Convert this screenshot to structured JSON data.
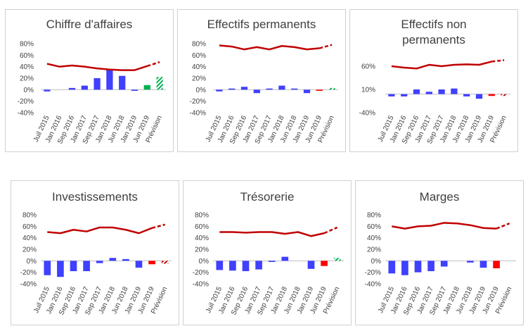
{
  "colors": {
    "line": "#c00000",
    "bar": "#4040ff",
    "bar_last_positive": "#00b050",
    "bar_last_negative": "#ff0000",
    "forecast_positive": "#00b050",
    "forecast_negative": "#c00000",
    "axis": "#bfbfbf",
    "text": "#404040"
  },
  "chart_data": [
    {
      "type": "bar",
      "title": "Chiffre d'affaires",
      "categories": [
        "Juil 2015",
        "Jan 2016",
        "Sep 2016",
        "Jan 2017",
        "Sep 2017",
        "Jan 2018",
        "Jun 2018",
        "Jan 2019",
        "Jun 2019",
        "Prévision"
      ],
      "x_tick_labels": [
        "Juil 2015",
        "Jan 2016",
        "Sep 2016",
        "Jan 2017",
        "Sep 2017",
        "Jan 2018",
        "Jun 2018",
        "Jan 2019",
        "Jun 2019",
        "Prévision"
      ],
      "y_ticks": [
        "80%",
        "60%",
        "40%",
        "20%",
        "0%",
        "-20%",
        "-40%"
      ],
      "ylim": [
        -40,
        80
      ],
      "series": [
        {
          "kind": "bar",
          "values": [
            -3,
            0,
            3,
            7,
            20,
            36,
            24,
            -2,
            8,
            22
          ]
        },
        {
          "kind": "line",
          "values": [
            45,
            40,
            42,
            40,
            37,
            35,
            34,
            34,
            41,
            48
          ]
        }
      ],
      "last_bar_color": "positive",
      "forecast_hatched": true
    },
    {
      "type": "bar",
      "title": "Effectifs permanents",
      "categories": [
        "Juil 2015",
        "Jan 2016",
        "Sep 2016",
        "Jan 2017",
        "Sep 2017",
        "Jan 2018",
        "Jun 2018",
        "Jan 2019",
        "Jun 2019",
        "Prévision"
      ],
      "x_tick_labels": [
        "Juil 2015",
        "Jan 2016",
        "Sep 2016",
        "Jan 2017",
        "Sep 2017",
        "Jan 2018",
        "Jun 2018",
        "Jan 2019",
        "Jun 2019",
        "Prévision"
      ],
      "y_ticks": [
        "80%",
        "60%",
        "40%",
        "20%",
        "0%",
        "-20%",
        "-40%"
      ],
      "ylim": [
        -40,
        80
      ],
      "series": [
        {
          "kind": "bar",
          "values": [
            -3,
            2,
            5,
            -6,
            2,
            7,
            2,
            -6,
            -2,
            3
          ]
        },
        {
          "kind": "line",
          "values": [
            77,
            75,
            70,
            74,
            70,
            76,
            74,
            70,
            72,
            78
          ]
        }
      ],
      "last_bar_color": "negative",
      "forecast_hatched": true
    },
    {
      "type": "bar",
      "title": "Effectifs non permanents",
      "categories": [
        "Juil 2015",
        "Jan 2016",
        "Sep 2016",
        "Jan 2017",
        "Sep 2017",
        "Jan 2018",
        "Jun 2018",
        "Jan 2019",
        "Jun 2019",
        "Prévision"
      ],
      "x_tick_labels": [
        "Juil 2015",
        "Jan 2016",
        "Sep 2016",
        "Jan 2017",
        "Sep 2017",
        "Jan 2018",
        "Jun 2018",
        "Jan 2019",
        "Jun 2019",
        "Prévision"
      ],
      "y_ticks": [
        "60%",
        "10%",
        "-40%"
      ],
      "ylim": [
        -40,
        60
      ],
      "series": [
        {
          "kind": "bar",
          "values": [
            -5,
            -5,
            10,
            5,
            10,
            12,
            -5,
            -10,
            -4,
            -4
          ]
        },
        {
          "kind": "line",
          "values": [
            60,
            57,
            55,
            63,
            60,
            63,
            64,
            63,
            70,
            73
          ]
        }
      ],
      "last_bar_color": "negative",
      "forecast_hatched": true
    },
    {
      "type": "bar",
      "title": "Investissements",
      "categories": [
        "Juil 2015",
        "Jan 2016",
        "Sep 2016",
        "Jan 2017",
        "Sep 2017",
        "Jan 2018",
        "Jun 2018",
        "Jan 2019",
        "Jun 2019",
        "Prévision"
      ],
      "x_tick_labels": [
        "Juil 2015",
        "Jan 2016",
        "Sep 2016",
        "Jan 2017",
        "Sep 2017",
        "Jan 2018",
        "Jun 2018",
        "Jan 2019",
        "Jun 2019",
        "Prévision"
      ],
      "y_ticks": [
        "80%",
        "60%",
        "40%",
        "20%",
        "0%",
        "-20%",
        "-40%"
      ],
      "ylim": [
        -40,
        80
      ],
      "series": [
        {
          "kind": "bar",
          "values": [
            -25,
            -28,
            -18,
            -18,
            -4,
            5,
            3,
            -12,
            -6,
            -5
          ]
        },
        {
          "kind": "line",
          "values": [
            50,
            48,
            54,
            51,
            58,
            58,
            54,
            48,
            57,
            63
          ]
        }
      ],
      "last_bar_color": "negative",
      "forecast_hatched": true
    },
    {
      "type": "bar",
      "title": "Trésorerie",
      "categories": [
        "Juil 2015",
        "Jan 2016",
        "Sep 2016",
        "Jan 2017",
        "Sep 2017",
        "Jan 2018",
        "Jun 2018",
        "Jan 2019",
        "Jun 2019",
        "Prévision"
      ],
      "x_tick_labels": [
        "Juil 2015",
        "Jan 2016",
        "Sep 2016",
        "Jan 2017",
        "Sep 2017",
        "Jan 2018",
        "Jun 2018",
        "Jan 2019",
        "Jun 2019",
        "Prévision"
      ],
      "y_ticks": [
        "80%",
        "60%",
        "40%",
        "20%",
        "0%",
        "-20%",
        "-40%"
      ],
      "ylim": [
        -40,
        80
      ],
      "series": [
        {
          "kind": "bar",
          "values": [
            -16,
            -17,
            -18,
            -15,
            -2,
            7,
            0,
            -14,
            -9,
            5
          ]
        },
        {
          "kind": "line",
          "values": [
            50,
            50,
            49,
            50,
            50,
            47,
            50,
            43,
            48,
            58
          ]
        }
      ],
      "last_bar_color": "negative",
      "forecast_hatched": true
    },
    {
      "type": "bar",
      "title": "Marges",
      "categories": [
        "Juil 2015",
        "Jan 2016",
        "Sep 2016",
        "Jan 2017",
        "Sep 2017",
        "Jan 2018",
        "Jun 2018",
        "Jan 2019",
        "Jun 2019",
        "Prévision"
      ],
      "x_tick_labels": [
        "Juil 2015",
        "Jan 2016",
        "Sep 2016",
        "Jan 2017",
        "Sep 2017",
        "Jan 2018",
        "Jun 2018",
        "Jan 2019",
        "Jun 2019",
        "Prévision"
      ],
      "y_ticks": [
        "80%",
        "60%",
        "40%",
        "20%",
        "0%",
        "-20%",
        "-40%"
      ],
      "ylim": [
        -40,
        80
      ],
      "series": [
        {
          "kind": "bar",
          "values": [
            -22,
            -25,
            -20,
            -18,
            -10,
            0,
            -3,
            -12,
            -13,
            0
          ]
        },
        {
          "kind": "line",
          "values": [
            60,
            56,
            60,
            61,
            66,
            65,
            62,
            57,
            56,
            65
          ]
        }
      ],
      "last_bar_color": "negative",
      "forecast_hatched": false
    }
  ]
}
